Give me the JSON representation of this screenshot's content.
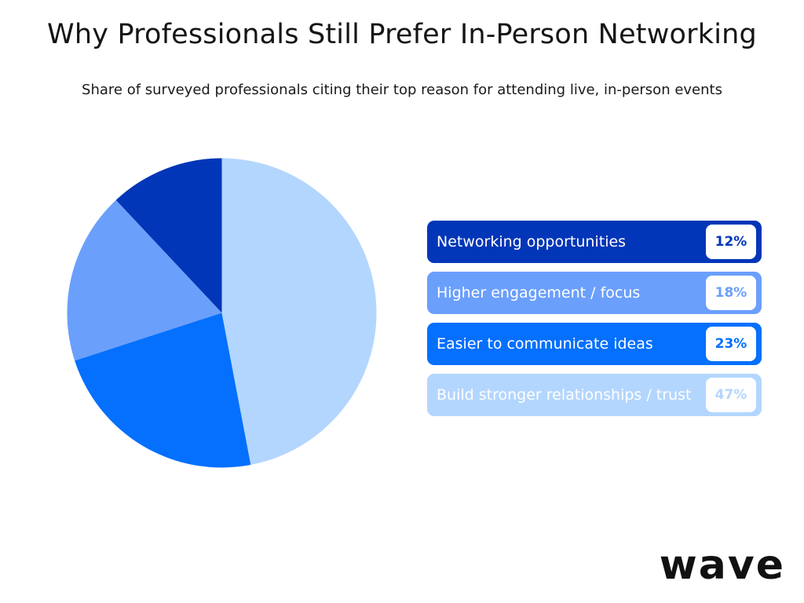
{
  "title": "Why Professionals Still Prefer In-Person Networking",
  "subtitle": "Share of surveyed professionals citing their top reason for attending live, in-person events",
  "brand": "wave",
  "chart_data": {
    "type": "pie",
    "title": "Why Professionals Still Prefer In-Person Networking",
    "subtitle": "Share of surveyed professionals citing their top reason for attending live, in-person events",
    "legend_position": "right",
    "slices": [
      {
        "label": "Networking opportunities",
        "value": 12,
        "display": "12%",
        "color": "#0236b8"
      },
      {
        "label": "Higher engagement / focus",
        "value": 18,
        "display": "18%",
        "color": "#6b9ffc"
      },
      {
        "label": "Easier to communicate ideas",
        "value": 23,
        "display": "23%",
        "color": "#0470fd"
      },
      {
        "label": "Build stronger relationships / trust",
        "value": 47,
        "display": "47%",
        "color": "#b3d6fe"
      }
    ]
  }
}
